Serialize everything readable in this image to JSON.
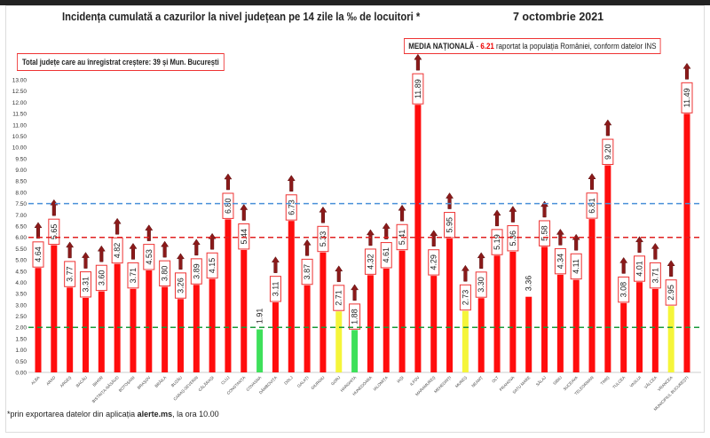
{
  "header": {
    "title": "Incidența cumulată a cazurilor la nivel județean pe 14 zile la ‰ de locuitori *",
    "date": "7 octombrie 2021",
    "media_label": "MEDIA NAȚIONALĂ",
    "media_sep": " - ",
    "media_value": "6.21",
    "media_text": " raportat la populația României, conform datelor INS",
    "total_text": "Total județe care au înregistrat creștere:  39 și Mun. București"
  },
  "footer": {
    "prefix": "*prin exportarea datelor din aplicația ",
    "app": "alerte.ms",
    "suffix": ", la ora 10.00"
  },
  "chart_data": {
    "type": "bar",
    "title": "Incidența cumulată a cazurilor la nivel județean pe 14 zile la ‰ de locuitori *",
    "ylim": [
      0,
      13
    ],
    "yticks": [
      "0.00",
      "0.50",
      "1.00",
      "1.50",
      "2.00",
      "2.50",
      "3.00",
      "3.50",
      "4.00",
      "4.50",
      "5.00",
      "5.50",
      "6.00",
      "6.50",
      "7.00",
      "7.50",
      "8.00",
      "8.50",
      "9.00",
      "9.50",
      "10.00",
      "10.50",
      "11.00",
      "11.50",
      "12.00",
      "12.50",
      "13.00"
    ],
    "grid": false,
    "reference_lines": [
      {
        "value": 7.5,
        "color": "#4a90d9"
      },
      {
        "value": 6.0,
        "color": "#e02020"
      },
      {
        "value": 2.0,
        "color": "#1a9a3a"
      }
    ],
    "colors": {
      "red": "#ff0d0d",
      "yellow": "#f5f53a",
      "green": "#3ee05a",
      "arrow": "#8b1a1a"
    },
    "categories": [
      "ALBA",
      "ARAD",
      "ARGEȘ",
      "BACĂU",
      "BIHOR",
      "BISTRIȚA-NĂSĂUD",
      "BOTOȘANI",
      "BRAȘOV",
      "BRĂILA",
      "BUZĂU",
      "CARAȘ-SEVERIN",
      "CĂLĂRAȘI",
      "CLUJ",
      "CONSTANȚA",
      "COVASNA",
      "DÂMBOVIȚA",
      "DOLJ",
      "GALAȚI",
      "GIURGIU",
      "GORJ",
      "HARGHITA",
      "HUNEDOARA",
      "IALOMIȚA",
      "IAȘI",
      "ILFOV",
      "MARAMUREȘ",
      "MEHEDINȚI",
      "MUREȘ",
      "NEAMȚ",
      "OLT",
      "PRAHOVA",
      "SATU MARE",
      "SĂLAJ",
      "SIBIU",
      "SUCEAVA",
      "TELEORMAN",
      "TIMIȘ",
      "TULCEA",
      "VASLUI",
      "VÂLCEA",
      "VRANCEA",
      "MUNICIPIUL BUCUREȘTI"
    ],
    "values": [
      4.64,
      5.65,
      3.77,
      3.31,
      3.6,
      4.82,
      3.71,
      4.53,
      3.8,
      3.26,
      3.89,
      4.15,
      6.8,
      5.44,
      1.91,
      3.11,
      6.73,
      3.87,
      5.33,
      2.71,
      1.88,
      4.32,
      4.61,
      5.41,
      11.89,
      4.29,
      5.95,
      2.73,
      3.3,
      5.19,
      5.36,
      3.36,
      5.58,
      4.34,
      4.11,
      6.81,
      9.2,
      3.08,
      4.01,
      3.71,
      2.95,
      11.49
    ],
    "labels": [
      "4.64",
      "5.65",
      "3.77",
      "3.31",
      "3.60",
      "4.82",
      "3.71",
      "4.53",
      "3.80",
      "3.26",
      "3.89",
      "4.15",
      "6.80",
      "5.44",
      "1.91",
      "3.11",
      "6.73",
      "3.87",
      "5.33",
      "2.71",
      "1.88",
      "4.32",
      "4.61",
      "5.41",
      "11.89",
      "4.29",
      "5.95",
      "2.73",
      "3.30",
      "5.19",
      "5.36",
      "3.36",
      "5.58",
      "4.34",
      "4.11",
      "6.81",
      "9.20",
      "3.08",
      "4.01",
      "3.71",
      "2.95",
      "11.49"
    ],
    "bar_colors": [
      "red",
      "red",
      "red",
      "red",
      "red",
      "red",
      "red",
      "red",
      "red",
      "red",
      "red",
      "red",
      "red",
      "red",
      "green",
      "red",
      "red",
      "red",
      "red",
      "yellow",
      "green",
      "red",
      "red",
      "red",
      "red",
      "red",
      "red",
      "yellow",
      "red",
      "red",
      "red",
      "red",
      "red",
      "red",
      "red",
      "red",
      "red",
      "red",
      "red",
      "red",
      "yellow",
      "red"
    ],
    "increase": [
      true,
      true,
      true,
      true,
      true,
      true,
      true,
      true,
      true,
      true,
      true,
      true,
      true,
      true,
      false,
      true,
      true,
      true,
      true,
      true,
      true,
      true,
      true,
      true,
      true,
      true,
      true,
      true,
      true,
      true,
      true,
      false,
      true,
      true,
      true,
      true,
      true,
      true,
      true,
      true,
      true,
      true
    ]
  }
}
